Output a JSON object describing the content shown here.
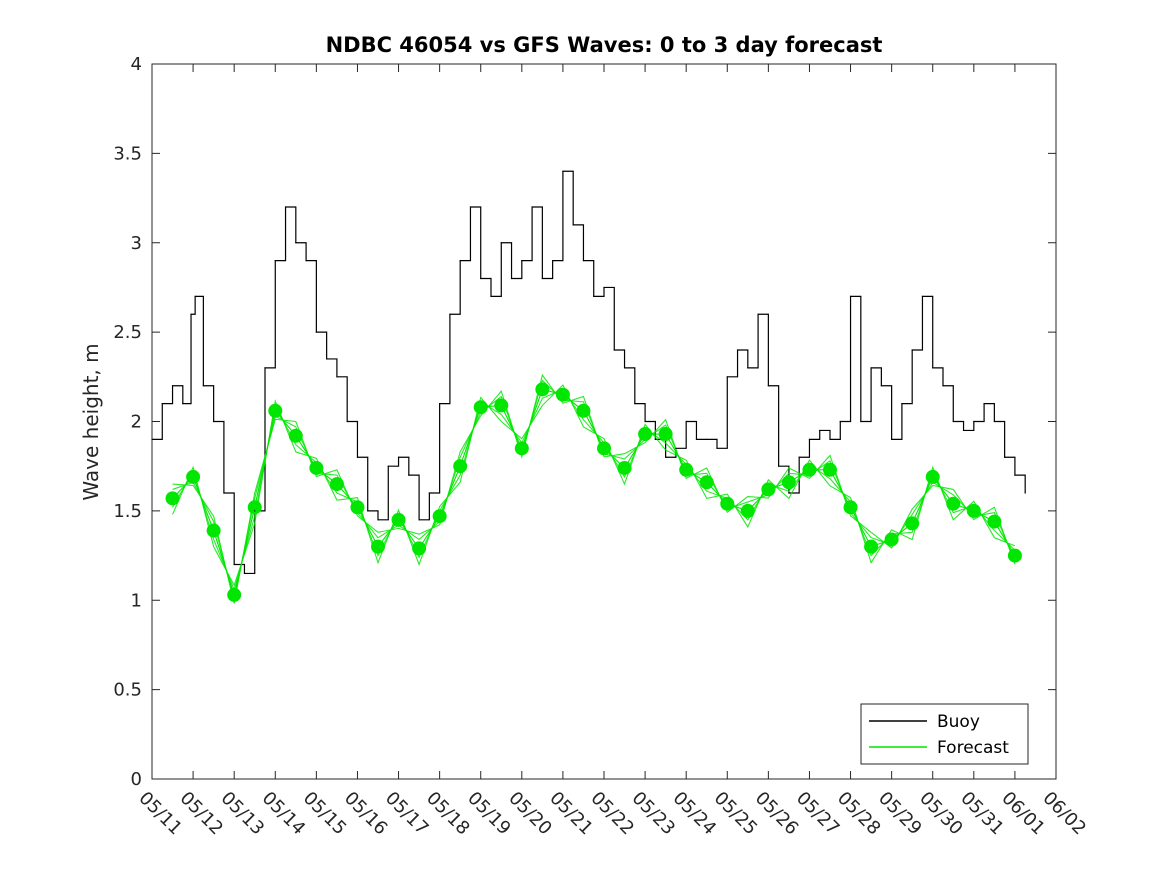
{
  "chart_data": {
    "type": "line",
    "title": "NDBC 46054 vs GFS Waves: 0 to 3 day forecast",
    "xlabel": "",
    "ylabel": "Wave height, m",
    "ylim": [
      0,
      4
    ],
    "yticks": [
      "0",
      "0.5",
      "1",
      "1.5",
      "2",
      "2.5",
      "3",
      "3.5",
      "4"
    ],
    "xlim": [
      0,
      22
    ],
    "xticks": [
      "05/11",
      "05/12",
      "05/13",
      "05/14",
      "05/15",
      "05/16",
      "05/17",
      "05/18",
      "05/19",
      "05/20",
      "05/21",
      "05/22",
      "05/23",
      "05/24",
      "05/25",
      "05/26",
      "05/27",
      "05/28",
      "05/29",
      "05/30",
      "05/31",
      "06/01",
      "06/02"
    ],
    "legend": {
      "placement": "bottom-right",
      "entries": [
        {
          "label": "Buoy",
          "color": "#000000"
        },
        {
          "label": "Forecast",
          "color": "#00e600"
        }
      ]
    },
    "series": [
      {
        "name": "Buoy",
        "color": "#000000",
        "x": [
          0,
          0.25,
          0.5,
          0.75,
          0.95,
          1.05,
          1.25,
          1.5,
          1.75,
          2.0,
          2.25,
          2.5,
          2.75,
          3.0,
          3.25,
          3.5,
          3.75,
          4.0,
          4.25,
          4.5,
          4.75,
          5.0,
          5.25,
          5.5,
          5.75,
          6.0,
          6.25,
          6.5,
          6.75,
          7.0,
          7.25,
          7.5,
          7.75,
          8.0,
          8.25,
          8.5,
          8.75,
          9.0,
          9.25,
          9.5,
          9.75,
          10.0,
          10.25,
          10.5,
          10.75,
          11.0,
          11.25,
          11.5,
          11.75,
          12.0,
          12.25,
          12.5,
          12.75,
          13.0,
          13.25,
          13.5,
          13.75,
          14.0,
          14.25,
          14.5,
          14.75,
          15.0,
          15.25,
          15.5,
          15.75,
          16.0,
          16.25,
          16.5,
          16.75,
          17.0,
          17.25,
          17.5,
          17.75,
          18.0,
          18.25,
          18.5,
          18.75,
          19.0,
          19.25,
          19.5,
          19.75,
          20.0,
          20.25,
          20.5,
          20.75,
          21.0,
          21.25
        ],
        "y": [
          1.9,
          2.1,
          2.2,
          2.1,
          2.6,
          2.7,
          2.2,
          2.0,
          1.6,
          1.2,
          1.15,
          1.5,
          2.3,
          2.9,
          3.2,
          3.0,
          2.9,
          2.5,
          2.35,
          2.25,
          2.0,
          1.8,
          1.5,
          1.45,
          1.75,
          1.8,
          1.7,
          1.45,
          1.6,
          2.1,
          2.6,
          2.9,
          3.2,
          2.8,
          2.7,
          3.0,
          2.8,
          2.9,
          3.2,
          2.8,
          2.9,
          3.4,
          3.1,
          2.9,
          2.7,
          2.75,
          2.4,
          2.3,
          2.1,
          2.0,
          1.9,
          1.8,
          1.85,
          2.0,
          1.9,
          1.9,
          1.85,
          2.25,
          2.4,
          2.3,
          2.6,
          2.2,
          1.75,
          1.6,
          1.8,
          1.9,
          1.95,
          1.9,
          2.0,
          2.7,
          2.0,
          2.3,
          2.2,
          1.9,
          2.1,
          2.4,
          2.7,
          2.3,
          2.2,
          2.0,
          1.95,
          2.0,
          2.1,
          2.0,
          1.8,
          1.7,
          1.6
        ]
      },
      {
        "name": "Forecast",
        "color": "#00e600",
        "x": [
          0.5,
          1.0,
          1.5,
          2.0,
          2.5,
          3.0,
          3.5,
          4.0,
          4.5,
          5.0,
          5.5,
          6.0,
          6.5,
          7.0,
          7.5,
          8.0,
          8.5,
          9.0,
          9.5,
          10.0,
          10.5,
          11.0,
          11.5,
          12.0,
          12.5,
          13.0,
          13.5,
          14.0,
          14.5,
          15.0,
          15.5,
          16.0,
          16.5,
          17.0,
          17.5,
          18.0,
          18.5,
          19.0,
          19.5,
          20.0,
          20.5,
          21.0
        ],
        "y": [
          1.57,
          1.69,
          1.39,
          1.03,
          1.52,
          2.06,
          1.92,
          1.74,
          1.65,
          1.52,
          1.3,
          1.45,
          1.29,
          1.47,
          1.75,
          2.08,
          2.09,
          1.85,
          2.18,
          2.15,
          2.06,
          1.85,
          1.74,
          1.93,
          1.93,
          1.73,
          1.66,
          1.54,
          1.5,
          1.62,
          1.66,
          1.73,
          1.73,
          1.52,
          1.3,
          1.34,
          1.43,
          1.69,
          1.54,
          1.5,
          1.44,
          1.25
        ]
      }
    ]
  }
}
